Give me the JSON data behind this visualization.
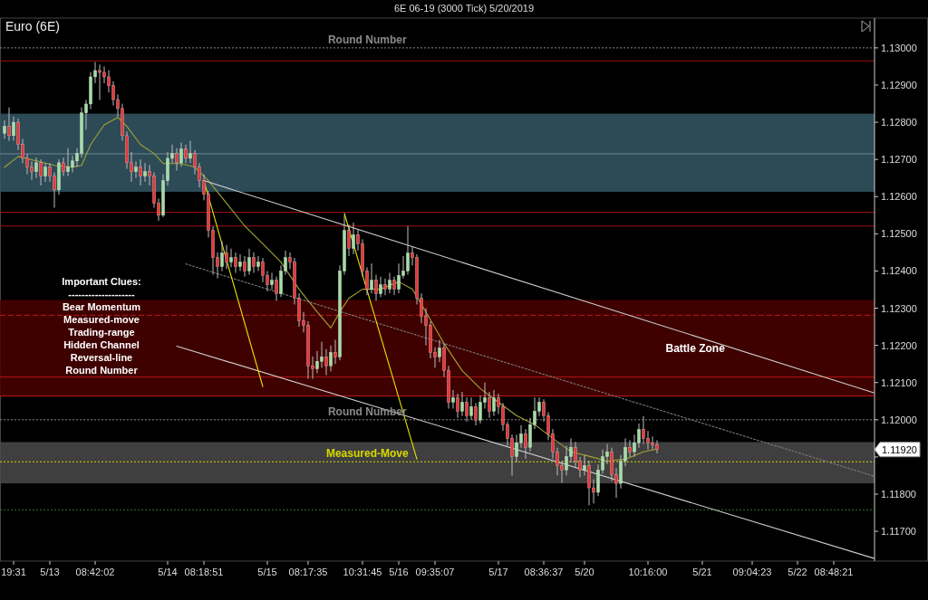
{
  "chart_data": {
    "type": "candlestick",
    "title": "6E 06-19 (3000 Tick)  5/20/2019",
    "subtitle": "Euro (6E)",
    "categories": [
      null,
      null,
      "19:31",
      null,
      null,
      null,
      null,
      null,
      null,
      null,
      "5/13",
      null,
      null,
      null,
      null,
      null,
      null,
      null,
      null,
      null,
      "08:42:02",
      null,
      null,
      null,
      null,
      null,
      null,
      null,
      null,
      null,
      null,
      null,
      null,
      null,
      null,
      null,
      "5/14",
      null,
      null,
      null,
      null,
      null,
      null,
      null,
      "08:18:51",
      null,
      null,
      null,
      null,
      null,
      null,
      null,
      null,
      null,
      null,
      null,
      null,
      null,
      "5/15",
      null,
      null,
      null,
      null,
      null,
      null,
      null,
      null,
      "08:17:35",
      null,
      null,
      null,
      null,
      null,
      null,
      null,
      null,
      null,
      null,
      null,
      "10:31:45",
      null,
      null,
      null,
      null,
      null,
      null,
      null,
      "5/16",
      null,
      null,
      null,
      null,
      null,
      null,
      null,
      "09:35:07",
      null,
      null,
      null,
      null,
      null,
      null,
      null,
      null,
      null,
      null,
      null,
      null,
      null,
      "5/17",
      null,
      null,
      null,
      null,
      null,
      null,
      null,
      null,
      null,
      "08:36:37",
      null,
      null,
      null,
      null,
      null,
      null,
      null,
      null,
      "5/20",
      null,
      null,
      null,
      null,
      null,
      null,
      null,
      null,
      null,
      null,
      null,
      null,
      null,
      "10:16:00",
      null,
      null,
      null,
      null,
      null,
      null,
      null,
      null,
      null,
      null,
      null,
      "5/21",
      null,
      null,
      null,
      null,
      null,
      null,
      null,
      null,
      null,
      null,
      "09:04:23",
      null,
      null,
      null,
      null,
      null,
      null,
      null,
      null,
      null,
      "5/22",
      null,
      null,
      null,
      null,
      null,
      null,
      null,
      "08:48:21",
      null,
      null,
      null,
      null,
      null,
      null,
      null,
      null,
      null
    ],
    "ohlc": [
      [
        1.1277,
        1.12805,
        1.12755,
        1.12789
      ],
      [
        1.12789,
        1.1284,
        1.1275,
        1.12764
      ],
      [
        1.12764,
        1.12815,
        1.1275,
        1.128
      ],
      [
        1.128,
        1.1281,
        1.12725,
        1.1274
      ],
      [
        1.1274,
        1.12755,
        1.1269,
        1.12703
      ],
      [
        1.12703,
        1.12715,
        1.1266,
        1.12679
      ],
      [
        1.12679,
        1.12695,
        1.12645,
        1.12667
      ],
      [
        1.12667,
        1.12705,
        1.1265,
        1.12691
      ],
      [
        1.12691,
        1.127,
        1.1263,
        1.12655
      ],
      [
        1.12655,
        1.1269,
        1.1264,
        1.12679
      ],
      [
        1.12679,
        1.1269,
        1.1264,
        1.12655
      ],
      [
        1.12655,
        1.12665,
        1.1257,
        1.12618
      ],
      [
        1.12618,
        1.127,
        1.12605,
        1.12691
      ],
      [
        1.12691,
        1.12705,
        1.12655,
        1.12667
      ],
      [
        1.12667,
        1.1273,
        1.12655,
        1.12679
      ],
      [
        1.12679,
        1.1271,
        1.12665,
        1.12696
      ],
      [
        1.12696,
        1.1273,
        1.1268,
        1.12716
      ],
      [
        1.12716,
        1.1284,
        1.12705,
        1.12825
      ],
      [
        1.12825,
        1.1286,
        1.1278,
        1.12849
      ],
      [
        1.12849,
        1.12935,
        1.12835,
        1.12922
      ],
      [
        1.12922,
        1.12962,
        1.12905,
        1.12939
      ],
      [
        1.12939,
        1.12955,
        1.1286,
        1.12934
      ],
      [
        1.12934,
        1.1295,
        1.12905,
        1.12922
      ],
      [
        1.12922,
        1.1294,
        1.1288,
        1.12898
      ],
      [
        1.12898,
        1.1291,
        1.12845,
        1.12861
      ],
      [
        1.12861,
        1.12875,
        1.12815,
        1.12837
      ],
      [
        1.12837,
        1.1285,
        1.1275,
        1.12764
      ],
      [
        1.12764,
        1.12775,
        1.12675,
        1.12691
      ],
      [
        1.12691,
        1.1272,
        1.1264,
        1.12667
      ],
      [
        1.12667,
        1.12695,
        1.1265,
        1.12679
      ],
      [
        1.12679,
        1.127,
        1.1263,
        1.12655
      ],
      [
        1.12655,
        1.1269,
        1.1264,
        1.12667
      ],
      [
        1.12667,
        1.12685,
        1.1263,
        1.12655
      ],
      [
        1.12655,
        1.12665,
        1.1257,
        1.12582
      ],
      [
        1.12582,
        1.12595,
        1.12535,
        1.1255
      ],
      [
        1.1255,
        1.1266,
        1.12545,
        1.12643
      ],
      [
        1.12643,
        1.1272,
        1.1263,
        1.12703
      ],
      [
        1.12703,
        1.1274,
        1.1269,
        1.12716
      ],
      [
        1.12716,
        1.1273,
        1.1267,
        1.12691
      ],
      [
        1.12691,
        1.12745,
        1.1268,
        1.12728
      ],
      [
        1.12728,
        1.1274,
        1.1269,
        1.12703
      ],
      [
        1.12703,
        1.1275,
        1.1269,
        1.12716
      ],
      [
        1.12716,
        1.12725,
        1.1266,
        1.12679
      ],
      [
        1.12679,
        1.1269,
        1.12625,
        1.12643
      ],
      [
        1.12643,
        1.1266,
        1.1259,
        1.12606
      ],
      [
        1.12606,
        1.12615,
        1.1249,
        1.12509
      ],
      [
        1.12509,
        1.1252,
        1.1239,
        1.12436
      ],
      [
        1.12436,
        1.1245,
        1.1238,
        1.12412
      ],
      [
        1.12412,
        1.1248,
        1.124,
        1.12448
      ],
      [
        1.12448,
        1.1247,
        1.12405,
        1.12424
      ],
      [
        1.12424,
        1.1246,
        1.1241,
        1.12436
      ],
      [
        1.12436,
        1.1245,
        1.12395,
        1.12412
      ],
      [
        1.12412,
        1.12445,
        1.124,
        1.12424
      ],
      [
        1.12424,
        1.1244,
        1.12385,
        1.124
      ],
      [
        1.124,
        1.1246,
        1.1239,
        1.12436
      ],
      [
        1.12436,
        1.1245,
        1.12395,
        1.12412
      ],
      [
        1.12412,
        1.1244,
        1.124,
        1.12424
      ],
      [
        1.12424,
        1.12435,
        1.1237,
        1.12388
      ],
      [
        1.12388,
        1.124,
        1.12345,
        1.12363
      ],
      [
        1.12363,
        1.12395,
        1.1235,
        1.12375
      ],
      [
        1.12375,
        1.12385,
        1.1232,
        1.12339
      ],
      [
        1.12339,
        1.12415,
        1.1233,
        1.124
      ],
      [
        1.124,
        1.12455,
        1.1239,
        1.12436
      ],
      [
        1.12436,
        1.1245,
        1.12405,
        1.12424
      ],
      [
        1.12424,
        1.12435,
        1.1231,
        1.12327
      ],
      [
        1.12327,
        1.1234,
        1.1225,
        1.12266
      ],
      [
        1.12266,
        1.1229,
        1.12235,
        1.12254
      ],
      [
        1.12254,
        1.12265,
        1.1211,
        1.12145
      ],
      [
        1.12145,
        1.1217,
        1.1211,
        1.12137
      ],
      [
        1.12137,
        1.12185,
        1.12125,
        1.12157
      ],
      [
        1.12157,
        1.1221,
        1.1214,
        1.12169
      ],
      [
        1.12169,
        1.1219,
        1.1212,
        1.12145
      ],
      [
        1.12145,
        1.122,
        1.1213,
        1.12181
      ],
      [
        1.12181,
        1.12215,
        1.1215,
        1.12169
      ],
      [
        1.12169,
        1.12415,
        1.1216,
        1.124
      ],
      [
        1.124,
        1.1255,
        1.1239,
        1.12509
      ],
      [
        1.12509,
        1.12525,
        1.1244,
        1.12461
      ],
      [
        1.12461,
        1.1253,
        1.12445,
        1.12497
      ],
      [
        1.12497,
        1.1251,
        1.12455,
        1.12473
      ],
      [
        1.12473,
        1.12485,
        1.12385,
        1.124
      ],
      [
        1.124,
        1.1241,
        1.12335,
        1.12351
      ],
      [
        1.12351,
        1.1242,
        1.1234,
        1.12375
      ],
      [
        1.12375,
        1.1239,
        1.1232,
        1.12339
      ],
      [
        1.12339,
        1.12385,
        1.1233,
        1.12363
      ],
      [
        1.12363,
        1.1238,
        1.12335,
        1.12351
      ],
      [
        1.12351,
        1.12395,
        1.1234,
        1.12375
      ],
      [
        1.12375,
        1.12385,
        1.12335,
        1.12351
      ],
      [
        1.12351,
        1.1242,
        1.1234,
        1.12388
      ],
      [
        1.12388,
        1.1244,
        1.1238,
        1.124
      ],
      [
        1.124,
        1.1252,
        1.1239,
        1.12448
      ],
      [
        1.12448,
        1.12465,
        1.12415,
        1.12436
      ],
      [
        1.12436,
        1.12445,
        1.1231,
        1.12327
      ],
      [
        1.12327,
        1.1234,
        1.1226,
        1.12278
      ],
      [
        1.12278,
        1.123,
        1.122,
        1.12254
      ],
      [
        1.12254,
        1.12265,
        1.12165,
        1.12181
      ],
      [
        1.12181,
        1.12195,
        1.1214,
        1.12169
      ],
      [
        1.12169,
        1.12215,
        1.12155,
        1.12193
      ],
      [
        1.12193,
        1.12205,
        1.12115,
        1.12133
      ],
      [
        1.12133,
        1.12145,
        1.1203,
        1.12047
      ],
      [
        1.12047,
        1.1208,
        1.1203,
        1.12059
      ],
      [
        1.12059,
        1.1207,
        1.12005,
        1.12023
      ],
      [
        1.12023,
        1.12075,
        1.1201,
        1.12047
      ],
      [
        1.12047,
        1.1206,
        1.11995,
        1.12011
      ],
      [
        1.12011,
        1.1206,
        1.12,
        1.12035
      ],
      [
        1.12035,
        1.12045,
        1.11985,
        1.11999
      ],
      [
        1.11999,
        1.12065,
        1.1199,
        1.12047
      ],
      [
        1.12047,
        1.121,
        1.1203,
        1.12059
      ],
      [
        1.12059,
        1.12075,
        1.12005,
        1.12023
      ],
      [
        1.12023,
        1.1208,
        1.1201,
        1.12059
      ],
      [
        1.12059,
        1.1207,
        1.12015,
        1.12035
      ],
      [
        1.12035,
        1.12045,
        1.1197,
        1.11987
      ],
      [
        1.11987,
        1.11995,
        1.1193,
        1.1195
      ],
      [
        1.1195,
        1.1196,
        1.1185,
        1.11901
      ],
      [
        1.11901,
        1.1196,
        1.11885,
        1.11938
      ],
      [
        1.11938,
        1.11985,
        1.11925,
        1.11962
      ],
      [
        1.11962,
        1.11975,
        1.11895,
        1.11926
      ],
      [
        1.11926,
        1.12005,
        1.11915,
        1.11987
      ],
      [
        1.11987,
        1.1206,
        1.11975,
        1.12023
      ],
      [
        1.12023,
        1.1206,
        1.1201,
        1.12047
      ],
      [
        1.12047,
        1.12055,
        1.11995,
        1.12011
      ],
      [
        1.12011,
        1.1202,
        1.11945,
        1.11962
      ],
      [
        1.11962,
        1.11975,
        1.11895,
        1.11914
      ],
      [
        1.11914,
        1.11925,
        1.1185,
        1.11877
      ],
      [
        1.11877,
        1.1189,
        1.1183,
        1.11865
      ],
      [
        1.11865,
        1.1193,
        1.1185,
        1.11901
      ],
      [
        1.11901,
        1.1195,
        1.11885,
        1.11926
      ],
      [
        1.11926,
        1.1194,
        1.1187,
        1.11889
      ],
      [
        1.11889,
        1.119,
        1.11845,
        1.11865
      ],
      [
        1.11865,
        1.11905,
        1.1185,
        1.11877
      ],
      [
        1.11877,
        1.1189,
        1.1177,
        1.11817
      ],
      [
        1.11817,
        1.1184,
        1.11775,
        1.11805
      ],
      [
        1.11805,
        1.1188,
        1.11795,
        1.11865
      ],
      [
        1.11865,
        1.1192,
        1.11855,
        1.11901
      ],
      [
        1.11901,
        1.11935,
        1.1188,
        1.11914
      ],
      [
        1.11914,
        1.11925,
        1.11835,
        1.11853
      ],
      [
        1.11853,
        1.1187,
        1.1179,
        1.11829
      ],
      [
        1.11829,
        1.11905,
        1.11815,
        1.11889
      ],
      [
        1.11889,
        1.1195,
        1.11875,
        1.11926
      ],
      [
        1.11926,
        1.11945,
        1.119,
        1.11914
      ],
      [
        1.11914,
        1.1196,
        1.119,
        1.11938
      ],
      [
        1.11938,
        1.1199,
        1.11925,
        1.11974
      ],
      [
        1.11974,
        1.1201,
        1.11935,
        1.1195
      ],
      [
        1.1195,
        1.1197,
        1.1192,
        1.11938
      ],
      [
        1.11938,
        1.11955,
        1.1192,
        1.11933
      ],
      [
        1.11933,
        1.11945,
        1.1191,
        1.1192
      ],
      null,
      null,
      null,
      null,
      null,
      null,
      null,
      null,
      null,
      null,
      null,
      null,
      null,
      null,
      null,
      null,
      null,
      null,
      null,
      null,
      null,
      null,
      null,
      null,
      null,
      null,
      null,
      null,
      null,
      null,
      null,
      null,
      null,
      null,
      null,
      null,
      null,
      null,
      null,
      null,
      null,
      null,
      null,
      null,
      null,
      null,
      null,
      null
    ],
    "series": [
      {
        "type": "line",
        "color": "#a3a336",
        "line_style": "solid",
        "values": [
          1.12679,
          null,
          null,
          1.12708,
          null,
          null,
          null,
          1.12696,
          null,
          null,
          null,
          1.12684,
          null,
          null,
          null,
          1.12679,
          null,
          1.12684,
          null,
          1.1274,
          null,
          null,
          1.12793,
          null,
          null,
          1.12813,
          null,
          1.12789,
          null,
          null,
          1.1274,
          null,
          null,
          1.12716,
          null,
          1.12689,
          null,
          null,
          null,
          1.12689,
          null,
          null,
          1.12679,
          null,
          null,
          1.12643,
          null,
          null,
          null,
          1.12582,
          null,
          null,
          null,
          1.12521,
          null,
          null,
          null,
          1.12473,
          null,
          null,
          null,
          1.12424,
          null,
          null,
          null,
          1.12351,
          null,
          null,
          null,
          1.1229,
          null,
          null,
          1.12247,
          null,
          1.1229,
          null,
          1.12327,
          null,
          null,
          1.12351,
          null,
          null,
          null,
          1.12351,
          null,
          null,
          null,
          1.12371,
          null,
          null,
          1.12351,
          null,
          null,
          1.1229,
          null,
          null,
          null,
          1.12205,
          null,
          null,
          null,
          1.12132,
          null,
          null,
          null,
          1.12084,
          null,
          null,
          null,
          1.12047,
          null,
          null,
          null,
          1.12011,
          null,
          null,
          null,
          1.11987,
          null,
          null,
          null,
          1.1195,
          null,
          null,
          null,
          1.11914,
          null,
          null,
          null,
          1.11902,
          null,
          null,
          null,
          1.11889,
          null,
          null,
          null,
          1.11894,
          null,
          null,
          null,
          1.11914,
          null,
          null,
          1.11921,
          null,
          null,
          null,
          null,
          null,
          null,
          null,
          null,
          null,
          null,
          null,
          null,
          null,
          null,
          null,
          null,
          null,
          null,
          null,
          null,
          null,
          null,
          null,
          null,
          null,
          null,
          null,
          null,
          null,
          null,
          null,
          null,
          null,
          null,
          null,
          null,
          null,
          null,
          null,
          null,
          null,
          null,
          null,
          null,
          null,
          null,
          null,
          null
        ]
      },
      {
        "type": "line",
        "color": "#d0d0d0",
        "line_style": "solid",
        "values": [
          null,
          null,
          null,
          null,
          null,
          null,
          null,
          null,
          null,
          null,
          null,
          null,
          null,
          null,
          null,
          null,
          null,
          null,
          null,
          null,
          null,
          null,
          null,
          null,
          null,
          null,
          null,
          null,
          null,
          null,
          null,
          null,
          null,
          null,
          null,
          null,
          null,
          null,
          null,
          null,
          null,
          null,
          null,
          null,
          1.12643,
          null,
          null,
          null,
          null,
          null,
          null,
          null,
          null,
          null,
          null,
          null,
          null,
          null,
          null,
          null,
          null,
          null,
          null,
          null,
          null,
          null,
          null,
          null,
          null,
          null,
          null,
          null,
          null,
          null,
          null,
          null,
          null,
          null,
          null,
          null,
          null,
          null,
          null,
          null,
          null,
          null,
          null,
          null,
          null,
          null,
          null,
          null,
          null,
          null,
          null,
          null,
          null,
          null,
          null,
          null,
          null,
          null,
          null,
          null,
          null,
          null,
          null,
          null,
          null,
          null,
          null,
          null,
          null,
          null,
          null,
          null,
          null,
          null,
          null,
          null,
          null,
          null,
          null,
          null,
          null,
          null,
          null,
          null,
          null,
          null,
          null,
          null,
          null,
          null,
          null,
          null,
          null,
          null,
          null,
          null,
          null,
          null,
          null,
          null,
          null,
          null,
          null,
          null,
          null,
          null,
          null,
          null,
          null,
          null,
          null,
          null,
          null,
          null,
          null,
          null,
          null,
          null,
          null,
          null,
          null,
          null,
          null,
          null,
          null,
          null,
          null,
          null,
          null,
          null,
          null,
          null,
          null,
          null,
          null,
          null,
          null,
          null,
          null,
          null,
          null,
          null,
          null,
          null,
          null,
          null,
          null,
          null,
          1.12072
        ]
      },
      {
        "type": "line",
        "color": "#7a7a7a",
        "line_style": "dotted",
        "values": [
          null,
          null,
          null,
          null,
          null,
          null,
          null,
          null,
          null,
          null,
          null,
          null,
          null,
          null,
          null,
          null,
          null,
          null,
          null,
          null,
          null,
          null,
          null,
          null,
          null,
          null,
          null,
          null,
          null,
          null,
          null,
          null,
          null,
          null,
          null,
          null,
          null,
          null,
          null,
          null,
          1.12419,
          null,
          null,
          null,
          null,
          null,
          null,
          null,
          null,
          null,
          null,
          null,
          null,
          null,
          null,
          null,
          null,
          null,
          null,
          null,
          null,
          null,
          null,
          null,
          null,
          null,
          null,
          null,
          null,
          null,
          null,
          null,
          null,
          null,
          null,
          null,
          null,
          null,
          null,
          null,
          null,
          null,
          null,
          null,
          null,
          null,
          null,
          null,
          null,
          null,
          null,
          null,
          null,
          null,
          null,
          null,
          null,
          null,
          null,
          null,
          null,
          null,
          null,
          null,
          null,
          null,
          null,
          null,
          null,
          null,
          null,
          null,
          null,
          null,
          null,
          null,
          null,
          null,
          null,
          null,
          null,
          null,
          null,
          null,
          null,
          null,
          null,
          null,
          null,
          null,
          null,
          null,
          null,
          null,
          null,
          null,
          null,
          null,
          null,
          null,
          null,
          null,
          null,
          null,
          null,
          null,
          null,
          null,
          null,
          null,
          null,
          null,
          null,
          null,
          null,
          null,
          null,
          null,
          null,
          null,
          null,
          null,
          null,
          null,
          null,
          null,
          null,
          null,
          null,
          null,
          null,
          null,
          null,
          null,
          null,
          null,
          null,
          null,
          null,
          null,
          null,
          null,
          null,
          null,
          null,
          null,
          null,
          null,
          null,
          null,
          null,
          null,
          1.11848
        ]
      },
      {
        "type": "line",
        "color": "#d0d0d0",
        "line_style": "solid",
        "values": [
          null,
          null,
          null,
          null,
          null,
          null,
          null,
          null,
          null,
          null,
          null,
          null,
          null,
          null,
          null,
          null,
          null,
          null,
          null,
          null,
          null,
          null,
          null,
          null,
          null,
          null,
          null,
          null,
          null,
          null,
          null,
          null,
          null,
          null,
          null,
          null,
          null,
          null,
          1.12198,
          null,
          null,
          null,
          null,
          null,
          null,
          null,
          null,
          null,
          null,
          null,
          null,
          null,
          null,
          null,
          null,
          null,
          null,
          null,
          null,
          null,
          null,
          null,
          null,
          null,
          null,
          null,
          null,
          null,
          null,
          null,
          null,
          null,
          null,
          null,
          null,
          null,
          null,
          null,
          null,
          null,
          null,
          null,
          null,
          null,
          null,
          null,
          null,
          null,
          null,
          null,
          null,
          null,
          null,
          null,
          null,
          null,
          null,
          null,
          null,
          null,
          null,
          null,
          null,
          null,
          null,
          null,
          null,
          null,
          null,
          null,
          null,
          null,
          null,
          null,
          null,
          null,
          null,
          null,
          null,
          null,
          null,
          null,
          null,
          null,
          null,
          null,
          null,
          null,
          null,
          null,
          null,
          null,
          null,
          null,
          null,
          null,
          null,
          null,
          null,
          null,
          null,
          null,
          null,
          null,
          null,
          null,
          null,
          null,
          null,
          null,
          null,
          null,
          null,
          null,
          null,
          null,
          null,
          null,
          null,
          null,
          null,
          null,
          null,
          null,
          null,
          null,
          null,
          null,
          null,
          null,
          null,
          null,
          null,
          null,
          null,
          null,
          null,
          null,
          null,
          null,
          null,
          null,
          null,
          null,
          null,
          null,
          null,
          null,
          null,
          null,
          null,
          null,
          1.11627
        ]
      },
      {
        "type": "line",
        "color": "#e6e600",
        "line_style": "solid",
        "values": [
          null,
          null,
          null,
          null,
          null,
          null,
          null,
          null,
          null,
          null,
          null,
          null,
          null,
          null,
          null,
          null,
          null,
          null,
          null,
          null,
          null,
          null,
          null,
          null,
          null,
          null,
          null,
          null,
          null,
          null,
          null,
          null,
          null,
          null,
          null,
          null,
          null,
          null,
          null,
          null,
          null,
          null,
          null,
          null,
          1.12643,
          null,
          null,
          null,
          null,
          null,
          null,
          null,
          null,
          null,
          null,
          null,
          null,
          1.12089,
          null,
          null,
          null,
          null,
          null,
          null,
          null,
          null,
          null,
          null,
          null,
          null,
          null,
          null,
          null,
          null,
          null,
          null,
          null,
          null,
          null,
          null,
          null,
          null,
          null,
          null,
          null,
          null,
          null,
          null,
          null,
          null,
          null,
          null,
          null,
          null,
          null,
          null,
          null,
          null,
          null,
          null,
          null,
          null,
          null,
          null,
          null,
          null,
          null,
          null,
          null,
          null,
          null,
          null,
          null,
          null,
          null,
          null,
          null,
          null,
          null,
          null,
          null,
          null,
          null,
          null,
          null,
          null,
          null,
          null,
          null,
          null,
          null,
          null,
          null,
          null,
          null,
          null,
          null,
          null,
          null,
          null,
          null,
          null,
          null,
          null,
          null,
          null,
          null,
          null,
          null,
          null,
          null,
          null,
          null,
          null,
          null,
          null,
          null,
          null,
          null,
          null,
          null,
          null,
          null,
          null,
          null,
          null,
          null,
          null,
          null,
          null,
          null,
          null,
          null,
          null,
          null,
          null,
          null,
          null,
          null,
          null,
          null,
          null,
          null,
          null,
          null,
          null,
          null,
          null,
          null,
          null,
          null,
          null,
          null
        ]
      },
      {
        "type": "line",
        "color": "#e6e600",
        "line_style": "solid",
        "values": [
          null,
          null,
          null,
          null,
          null,
          null,
          null,
          null,
          null,
          null,
          null,
          null,
          null,
          null,
          null,
          null,
          null,
          null,
          null,
          null,
          null,
          null,
          null,
          null,
          null,
          null,
          null,
          null,
          null,
          null,
          null,
          null,
          null,
          null,
          null,
          null,
          null,
          null,
          null,
          null,
          null,
          null,
          null,
          null,
          null,
          null,
          null,
          null,
          null,
          null,
          null,
          null,
          null,
          null,
          null,
          null,
          null,
          null,
          null,
          null,
          null,
          null,
          null,
          null,
          null,
          null,
          null,
          null,
          null,
          null,
          null,
          null,
          null,
          null,
          null,
          1.12555,
          null,
          null,
          null,
          null,
          null,
          null,
          null,
          null,
          null,
          null,
          null,
          null,
          null,
          null,
          null,
          1.11894,
          null,
          null,
          null,
          null,
          null,
          null,
          null,
          null,
          null,
          null,
          null,
          null,
          null,
          null,
          null,
          null,
          null,
          null,
          null,
          null,
          null,
          null,
          null,
          null,
          null,
          null,
          null,
          null,
          null,
          null,
          null,
          null,
          null,
          null,
          null,
          null,
          null,
          null,
          null,
          null,
          null,
          null,
          null,
          null,
          null,
          null,
          null,
          null,
          null,
          null,
          null,
          null,
          null,
          null,
          null,
          null,
          null,
          null,
          null,
          null,
          null,
          null,
          null,
          null,
          null,
          null,
          null,
          null,
          null,
          null,
          null,
          null,
          null,
          null,
          null,
          null,
          null,
          null,
          null,
          null,
          null,
          null,
          null,
          null,
          null,
          null,
          null,
          null,
          null,
          null,
          null,
          null,
          null,
          null,
          null,
          null,
          null,
          null,
          null,
          null,
          null
        ]
      }
    ],
    "ylim": [
      1.1162,
      1.1308
    ],
    "yticks": [
      {
        "value": 1.117,
        "label": "1.11700"
      },
      {
        "value": 1.118,
        "label": "1.11800"
      },
      {
        "value": 1.119,
        "label": null
      },
      {
        "value": 1.12,
        "label": "1.12000"
      },
      {
        "value": 1.121,
        "label": "1.12100"
      },
      {
        "value": 1.122,
        "label": "1.12200"
      },
      {
        "value": 1.123,
        "label": "1.12300"
      },
      {
        "value": 1.124,
        "label": "1.12400"
      },
      {
        "value": 1.125,
        "label": "1.12500"
      },
      {
        "value": 1.126,
        "label": "1.12600"
      },
      {
        "value": 1.127,
        "label": "1.12700"
      },
      {
        "value": 1.128,
        "label": "1.12800"
      },
      {
        "value": 1.129,
        "label": "1.12900"
      },
      {
        "value": 1.13,
        "label": "1.13000"
      }
    ],
    "bands": [
      {
        "axis": "y",
        "from": 1.12613,
        "to": 1.12823,
        "color": "#355865"
      },
      {
        "axis": "y",
        "from": 1.12064,
        "to": 1.12322,
        "color": "#4a0000",
        "label": "Battle Zone"
      },
      {
        "axis": "y",
        "from": 1.11829,
        "to": 1.1194,
        "color": "#4a4a4a"
      }
    ],
    "ref_lines": [
      {
        "axis": "y",
        "value": 1.13,
        "label": "Round Number",
        "color": "#8a8a8a",
        "line_style": "dotted"
      },
      {
        "axis": "y",
        "value": 1.12965,
        "color": "#a01010",
        "line_style": "solid"
      },
      {
        "axis": "y",
        "value": 1.12715,
        "color": "#6a8a95",
        "line_style": "solid"
      },
      {
        "axis": "y",
        "value": 1.12558,
        "color": "#a01010",
        "line_style": "solid"
      },
      {
        "axis": "y",
        "value": 1.12521,
        "color": "#a01010",
        "line_style": "solid"
      },
      {
        "axis": "y",
        "value": 1.12281,
        "color": "#c01818",
        "line_style": "dashed"
      },
      {
        "axis": "y",
        "value": 1.12115,
        "color": "#b01515",
        "line_style": "solid"
      },
      {
        "axis": "y",
        "value": 1.12064,
        "color": "#c01818",
        "line_style": "solid"
      },
      {
        "axis": "y",
        "value": 1.12,
        "label": "Round Number",
        "color": "#8a8a8a",
        "line_style": "dotted"
      },
      {
        "axis": "y",
        "value": 1.11887,
        "label": "Measured-Move",
        "color": "#d8d800",
        "line_style": "dotted"
      },
      {
        "axis": "y",
        "value": 1.11758,
        "color": "#2e7a2e",
        "line_style": "dotted"
      }
    ],
    "annotations": [
      "Important Clues:",
      "--------------------",
      "Bear Momentum",
      "Measured-move",
      "Trading-range",
      "Hidden Channel",
      "Reversal-line",
      "Round Number",
      "1.11920"
    ]
  }
}
